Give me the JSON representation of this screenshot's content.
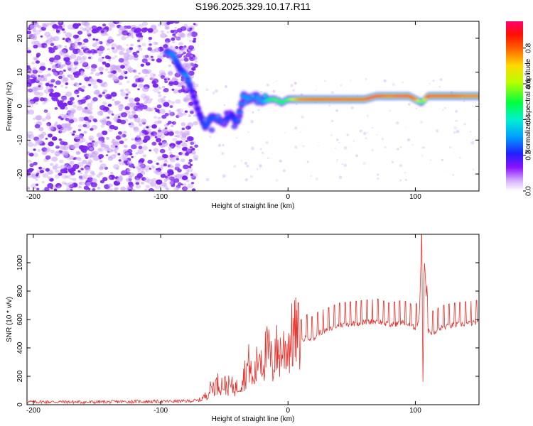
{
  "chart_data": [
    {
      "type": "heatmap",
      "title": "S196.2025.329.10.17.R11",
      "xlabel": "Height of straight line (km)",
      "ylabel": "Frequency (Hz)",
      "xlim": [
        -205,
        150
      ],
      "ylim": [
        -25,
        25
      ],
      "xticks": [
        -200,
        -100,
        0,
        100
      ],
      "yticks": [
        20,
        10,
        0,
        -10,
        -20
      ],
      "xtick_labels": [
        "-200",
        "-100",
        "0",
        "100"
      ],
      "ytick_labels": [
        "20",
        "10",
        "0",
        "-10",
        "-20"
      ],
      "colorbar": {
        "label": "Normalized spectral amplitude",
        "range": [
          0,
          0.95
        ],
        "ticks": [
          0.0,
          0.2,
          0.4,
          0.6,
          0.8
        ],
        "tick_labels": [
          "0.0",
          "0.2",
          "0.4",
          "0.6",
          "0.8"
        ],
        "colors": [
          "#ffffff",
          "#d0a8ff",
          "#7a00ff",
          "#0000ff",
          "#00c8ff",
          "#00ff60",
          "#c8ff00",
          "#ffd000",
          "#ff6000",
          "#ff0000",
          "#ff0080"
        ]
      },
      "noise_region": {
        "x_range": [
          -205,
          -72
        ],
        "y_range": [
          -25,
          25
        ],
        "color": "#7a22f0"
      },
      "ridge": {
        "x": [
          -95,
          -90,
          -85,
          -80,
          -75,
          -70,
          -65,
          -60,
          -55,
          -50,
          -45,
          -40,
          -35,
          -30,
          -25,
          -20,
          -15,
          -10,
          -5,
          0,
          10,
          20,
          30,
          40,
          50,
          60,
          70,
          75,
          80,
          85,
          90,
          95,
          100,
          105,
          110,
          120,
          130,
          140,
          150
        ],
        "y": [
          16,
          15,
          11,
          9,
          4,
          -2,
          -6,
          -3,
          -4,
          -5,
          -2,
          -5,
          3,
          2,
          3,
          1,
          2,
          2,
          1,
          2,
          2,
          2,
          2,
          2,
          2,
          2,
          3,
          3,
          3,
          3,
          3,
          3,
          2,
          1,
          3,
          3,
          3,
          3,
          3
        ],
        "amp": [
          0.25,
          0.3,
          0.2,
          0.3,
          0.2,
          0.2,
          0.25,
          0.25,
          0.25,
          0.25,
          0.2,
          0.25,
          0.3,
          0.3,
          0.3,
          0.3,
          0.5,
          0.55,
          0.5,
          0.55,
          0.85,
          0.9,
          0.9,
          0.9,
          0.9,
          0.9,
          0.95,
          0.9,
          0.85,
          0.9,
          0.95,
          0.9,
          0.8,
          0.5,
          0.9,
          0.9,
          0.9,
          0.85,
          0.85
        ]
      }
    },
    {
      "type": "line",
      "xlabel": "Height of straight line (km)",
      "ylabel": "SNR (10 * v/v)",
      "xlim": [
        -205,
        150
      ],
      "ylim": [
        0,
        1200
      ],
      "xticks": [
        -200,
        -100,
        0,
        100
      ],
      "yticks": [
        0,
        200,
        400,
        600,
        800,
        1000
      ],
      "xtick_labels": [
        "-200",
        "-100",
        "0",
        "100"
      ],
      "ytick_labels": [
        "0",
        "200",
        "400",
        "600",
        "800",
        "1000"
      ],
      "line_color": "#e8302a",
      "series": [
        {
          "name": "SNR",
          "x": [
            -205,
            -180,
            -160,
            -140,
            -120,
            -100,
            -80,
            -70,
            -65,
            -60,
            -55,
            -50,
            -45,
            -40,
            -35,
            -30,
            -28,
            -25,
            -22,
            -20,
            -18,
            -15,
            -12,
            -10,
            -8,
            -5,
            -2,
            0,
            5,
            10,
            15,
            20,
            25,
            30,
            40,
            50,
            60,
            70,
            80,
            90,
            100,
            103,
            105,
            106,
            107,
            110,
            115,
            120,
            130,
            140,
            150
          ],
          "y": [
            20,
            20,
            18,
            20,
            22,
            22,
            25,
            30,
            60,
            120,
            150,
            140,
            130,
            120,
            200,
            300,
            150,
            250,
            400,
            300,
            350,
            380,
            250,
            420,
            350,
            380,
            400,
            420,
            500,
            480,
            520,
            500,
            550,
            560,
            600,
            610,
            620,
            630,
            600,
            620,
            580,
            640,
            1200,
            150,
            1100,
            560,
            540,
            580,
            600,
            610,
            620
          ]
        }
      ]
    }
  ]
}
